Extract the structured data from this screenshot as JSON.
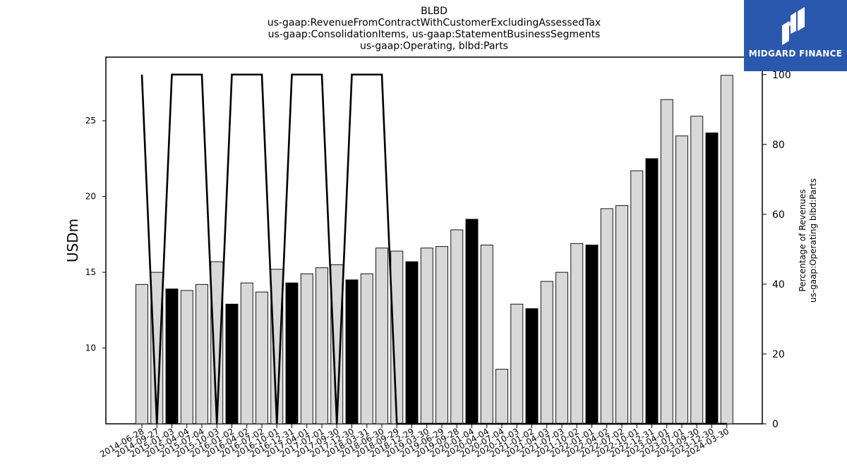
{
  "chart_data": {
    "type": "bar",
    "title_lines": [
      "BLBD",
      "us-gaap:RevenueFromContractWithCustomerExcludingAssessedTax",
      "us-gaap:ConsolidationItems, us-gaap:StatementBusinessSegments",
      "us-gaap:Operating, blbd:Parts"
    ],
    "ylabel": "USDm",
    "y2label_lines": [
      "Percentage of Revenues",
      "us-gaap:Operating blbd:Parts"
    ],
    "ylim": [
      5.0,
      29.2
    ],
    "y2lim": [
      0,
      105
    ],
    "yticks": [
      10,
      15,
      20,
      25
    ],
    "y2ticks": [
      0,
      20,
      40,
      60,
      80,
      100
    ],
    "categories": [
      "2014-06-28",
      "2014-09-27",
      "2015-01-03",
      "2015-04-04",
      "2015-07-04",
      "2015-10-03",
      "2016-01-02",
      "2016-04-02",
      "2016-07-02",
      "2016-10-01",
      "2016-12-31",
      "2017-04-01",
      "2017-07-01",
      "2017-09-30",
      "2017-12-30",
      "2018-03-31",
      "2018-06-30",
      "2018-09-29",
      "2018-12-29",
      "2019-03-30",
      "2019-06-29",
      "2019-09-28",
      "2020-01-04",
      "2020-04-04",
      "2020-07-04",
      "2020-10-03",
      "2021-01-02",
      "2021-04-03",
      "2021-07-03",
      "2021-10-02",
      "2022-01-01",
      "2022-04-02",
      "2022-07-02",
      "2022-10-01",
      "2022-12-31",
      "2023-04-01",
      "2023-07-01",
      "2023-09-30",
      "2023-12-30",
      "2024-03-30"
    ],
    "series": [
      {
        "values": [
          14.2,
          15.0,
          13.9,
          13.8,
          14.2,
          15.7,
          12.9,
          14.3,
          13.7,
          15.2,
          14.3,
          14.9,
          15.3,
          15.5,
          14.5,
          14.9,
          16.6,
          16.4,
          15.7,
          16.6,
          16.7,
          17.8,
          18.5,
          16.8,
          8.6,
          12.9,
          12.6,
          14.4,
          15.0,
          16.9,
          16.8,
          19.2,
          19.4,
          21.7,
          22.5,
          26.4,
          24.0,
          25.3,
          24.2,
          28.0
        ],
        "highlight": [
          false,
          false,
          true,
          false,
          false,
          false,
          true,
          false,
          false,
          false,
          true,
          false,
          false,
          false,
          true,
          false,
          false,
          false,
          true,
          false,
          false,
          false,
          true,
          false,
          false,
          false,
          true,
          false,
          false,
          false,
          true,
          false,
          false,
          false,
          true,
          false,
          false,
          false,
          true,
          false
        ]
      },
      {
        "axis": "right",
        "type": "line",
        "values": [
          100,
          0,
          100,
          100,
          100,
          0,
          100,
          100,
          100,
          0,
          100,
          100,
          100,
          0,
          100,
          100,
          100,
          0,
          0,
          0,
          0,
          0,
          0,
          0,
          0,
          0,
          0,
          0,
          0,
          0,
          0,
          0,
          0,
          0,
          0,
          0,
          0,
          0,
          0,
          0
        ]
      }
    ],
    "bar_colors": {
      "normal": "#d8d8d8",
      "highlight": "#000000",
      "edge": "#000000"
    },
    "line_color": "#000000",
    "grid": false
  },
  "logo": {
    "text": "MIDGARD FINANCE",
    "background": "#2a58ad"
  }
}
